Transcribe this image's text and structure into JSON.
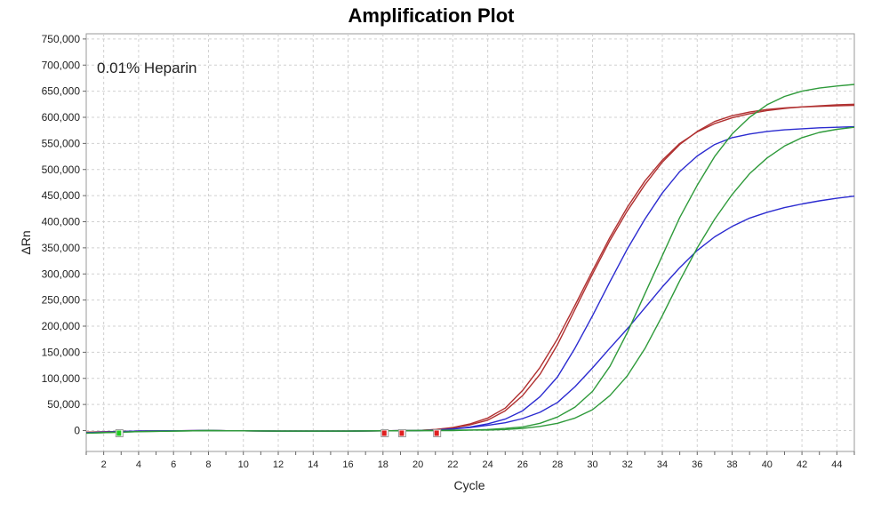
{
  "chart_data": {
    "type": "line",
    "title": "Amplification Plot",
    "annotation": "0.01% Heparin",
    "xlabel": "Cycle",
    "ylabel": "ΔRn",
    "xlim": [
      1,
      45
    ],
    "ylim": [
      -40000,
      760000
    ],
    "x_ticks": [
      2,
      4,
      6,
      8,
      10,
      12,
      14,
      16,
      18,
      20,
      22,
      24,
      26,
      28,
      30,
      32,
      34,
      36,
      38,
      40,
      42,
      44
    ],
    "y_ticks": [
      0,
      50000,
      100000,
      150000,
      200000,
      250000,
      300000,
      350000,
      400000,
      450000,
      500000,
      550000,
      600000,
      650000,
      700000,
      750000
    ],
    "y_tick_labels": [
      "0",
      "50,000",
      "100,000",
      "150,000",
      "200,000",
      "250,000",
      "300,000",
      "350,000",
      "400,000",
      "450,000",
      "500,000",
      "550,000",
      "600,000",
      "650,000",
      "700,000",
      "750,000"
    ],
    "grid": true,
    "colors": {
      "red": "#b03030",
      "blue": "#2b2bd0",
      "green": "#2e9a3a"
    },
    "series": [
      {
        "color": "red",
        "x": [
          1,
          4,
          8,
          12,
          16,
          20,
          21,
          22,
          23,
          24,
          25,
          26,
          27,
          28,
          29,
          30,
          31,
          32,
          33,
          34,
          35,
          36,
          37,
          38,
          39,
          40,
          41,
          42,
          43,
          44,
          45
        ],
        "y": [
          -3000,
          -1000,
          0,
          -1000,
          -1000,
          0,
          2000,
          6000,
          13000,
          24000,
          43000,
          77000,
          121000,
          176000,
          240000,
          306000,
          370000,
          428000,
          478000,
          518000,
          550000,
          572000,
          588000,
          599000,
          607000,
          613000,
          617000,
          620000,
          622000,
          624000,
          625000
        ]
      },
      {
        "color": "red",
        "x": [
          1,
          4,
          8,
          12,
          16,
          20,
          21,
          22,
          23,
          24,
          25,
          26,
          27,
          28,
          29,
          30,
          31,
          32,
          33,
          34,
          35,
          36,
          37,
          38,
          39,
          40,
          41,
          42,
          43,
          44,
          45
        ],
        "y": [
          -3000,
          -1000,
          0,
          -1000,
          -1000,
          0,
          2000,
          5000,
          11000,
          20000,
          38000,
          67000,
          108000,
          165000,
          232000,
          300000,
          364000,
          421000,
          471000,
          514000,
          548000,
          573000,
          592000,
          603000,
          610000,
          615000,
          618000,
          620000,
          621000,
          622000,
          623000
        ]
      },
      {
        "color": "blue",
        "x": [
          1,
          4,
          8,
          12,
          16,
          20,
          21,
          22,
          23,
          24,
          25,
          26,
          27,
          28,
          29,
          30,
          31,
          32,
          33,
          34,
          35,
          36,
          37,
          38,
          39,
          40,
          41,
          42,
          43,
          44,
          45
        ],
        "y": [
          -4000,
          -1000,
          0,
          -1000,
          -1000,
          0,
          1000,
          3000,
          7000,
          13000,
          22000,
          38000,
          65000,
          103000,
          158000,
          220000,
          285000,
          348000,
          405000,
          455000,
          496000,
          526000,
          548000,
          561000,
          568000,
          573000,
          576000,
          578000,
          580000,
          581000,
          582000
        ]
      },
      {
        "color": "blue",
        "x": [
          1,
          4,
          8,
          12,
          16,
          20,
          21,
          22,
          23,
          24,
          25,
          26,
          27,
          28,
          29,
          30,
          31,
          32,
          33,
          34,
          35,
          36,
          37,
          38,
          39,
          40,
          41,
          42,
          43,
          44,
          45
        ],
        "y": [
          -4000,
          -1000,
          0,
          -1000,
          -1000,
          0,
          1000,
          3000,
          6000,
          10000,
          15000,
          23000,
          35000,
          54000,
          84000,
          120000,
          158000,
          195000,
          235000,
          275000,
          312000,
          345000,
          371000,
          391000,
          407000,
          418000,
          427000,
          434000,
          440000,
          445000,
          449000
        ]
      },
      {
        "color": "green",
        "x": [
          1,
          4,
          8,
          12,
          16,
          20,
          21,
          22,
          23,
          24,
          25,
          26,
          27,
          28,
          29,
          30,
          31,
          32,
          33,
          34,
          35,
          36,
          37,
          38,
          39,
          40,
          41,
          42,
          43,
          44,
          45
        ],
        "y": [
          -5000,
          -2000,
          0,
          -1000,
          -1000,
          0,
          0,
          1000,
          1000,
          2000,
          4000,
          7000,
          14000,
          26000,
          45000,
          75000,
          123000,
          188000,
          262000,
          335000,
          408000,
          470000,
          525000,
          568000,
          600000,
          624000,
          640000,
          650000,
          656000,
          660000,
          663000
        ]
      },
      {
        "color": "green",
        "x": [
          1,
          4,
          8,
          12,
          16,
          20,
          21,
          22,
          23,
          24,
          25,
          26,
          27,
          28,
          29,
          30,
          31,
          32,
          33,
          34,
          35,
          36,
          37,
          38,
          39,
          40,
          41,
          42,
          43,
          44,
          45
        ],
        "y": [
          -5000,
          -2000,
          0,
          -1000,
          -1000,
          0,
          0,
          0,
          1000,
          1000,
          2000,
          4000,
          8000,
          14000,
          24000,
          40000,
          67000,
          105000,
          157000,
          220000,
          287000,
          350000,
          405000,
          452000,
          492000,
          522000,
          545000,
          561000,
          571000,
          577000,
          581000
        ]
      }
    ],
    "markers": [
      {
        "x": 2.9,
        "y": -5000,
        "color": "#22cc22"
      },
      {
        "x": 18.1,
        "y": -5000,
        "color": "#e02020"
      },
      {
        "x": 19.1,
        "y": -5000,
        "color": "#e02020"
      },
      {
        "x": 21.1,
        "y": -5000,
        "color": "#e02020"
      }
    ]
  }
}
